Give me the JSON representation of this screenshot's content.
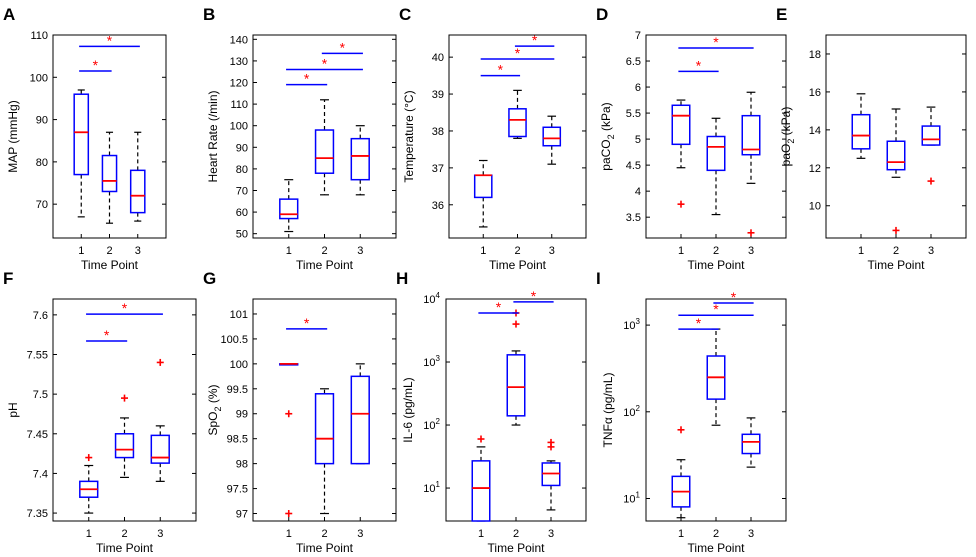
{
  "figure": {
    "colors": {
      "box": "#0000ff",
      "median": "#ff0000",
      "whisker": "#000000",
      "outlier": "#ff0000",
      "bracket": "#0000ff",
      "star": "#ff0000"
    },
    "sig_symbol": "*",
    "outlier_symbol": "+"
  },
  "chart_data": [
    {
      "panel": "A",
      "type": "box",
      "scale": "linear",
      "ylabel": "MAP (mmHg)",
      "xlabel": "Time Point",
      "categories": [
        "1",
        "2",
        "3"
      ],
      "ylim": [
        62,
        110
      ],
      "yticks": [
        70,
        80,
        90,
        100,
        110
      ],
      "ytick_labels": [
        "70",
        "80",
        "90",
        "100",
        "110"
      ],
      "boxes": [
        {
          "min": 67,
          "q1": 77,
          "median": 87,
          "q3": 96,
          "max": 97,
          "outliers": []
        },
        {
          "min": 65.5,
          "q1": 73,
          "median": 75.5,
          "q3": 81.5,
          "max": 87,
          "outliers": []
        },
        {
          "min": 66,
          "q1": 68,
          "median": 72,
          "q3": 78,
          "max": 87,
          "outliers": []
        }
      ],
      "sig_brackets": [
        {
          "from": 1,
          "to": 2,
          "y": 101.5
        },
        {
          "from": 1,
          "to": 3,
          "y": 107.3
        }
      ]
    },
    {
      "panel": "B",
      "type": "box",
      "scale": "linear",
      "ylabel": "Heart Rate (/min)",
      "xlabel": "Time Point",
      "categories": [
        "1",
        "2",
        "3"
      ],
      "ylim": [
        48,
        142
      ],
      "yticks": [
        50,
        60,
        70,
        80,
        90,
        100,
        110,
        120,
        130,
        140
      ],
      "ytick_labels": [
        "50",
        "60",
        "70",
        "80",
        "90",
        "100",
        "110",
        "120",
        "130",
        "140"
      ],
      "boxes": [
        {
          "min": 51,
          "q1": 57,
          "median": 59,
          "q3": 66,
          "max": 75,
          "outliers": []
        },
        {
          "min": 68,
          "q1": 78,
          "median": 85,
          "q3": 98,
          "max": 112,
          "outliers": []
        },
        {
          "min": 68,
          "q1": 75,
          "median": 86,
          "q3": 94,
          "max": 100,
          "outliers": []
        }
      ],
      "sig_brackets": [
        {
          "from": 1,
          "to": 2,
          "y": 119
        },
        {
          "from": 1,
          "to": 3,
          "y": 126
        },
        {
          "from": 2,
          "to": 3,
          "y": 133.5
        }
      ]
    },
    {
      "panel": "C",
      "type": "box",
      "scale": "linear",
      "ylabel": "Temperature (°C)",
      "xlabel": "Time Point",
      "categories": [
        "1",
        "2",
        "3"
      ],
      "ylim": [
        35.1,
        40.6
      ],
      "yticks": [
        36,
        37,
        38,
        39,
        40
      ],
      "ytick_labels": [
        "36",
        "37",
        "38",
        "39",
        "40"
      ],
      "boxes": [
        {
          "min": 35.4,
          "q1": 36.2,
          "median": 36.8,
          "q3": 36.8,
          "max": 37.2,
          "outliers": []
        },
        {
          "min": 37.8,
          "q1": 37.85,
          "median": 38.3,
          "q3": 38.6,
          "max": 39.1,
          "outliers": []
        },
        {
          "min": 37.1,
          "q1": 37.6,
          "median": 37.8,
          "q3": 38.1,
          "max": 38.4,
          "outliers": []
        }
      ],
      "sig_brackets": [
        {
          "from": 1,
          "to": 2,
          "y": 39.5
        },
        {
          "from": 1,
          "to": 3,
          "y": 39.95
        },
        {
          "from": 2,
          "to": 3,
          "y": 40.3
        }
      ]
    },
    {
      "panel": "D",
      "type": "box",
      "scale": "linear",
      "ylabel": "paCO2 (kPa)",
      "xlabel": "Time Point",
      "categories": [
        "1",
        "2",
        "3"
      ],
      "ylim": [
        3.1,
        7.0
      ],
      "yticks": [
        3.5,
        4,
        4.5,
        5,
        5.5,
        6,
        6.5,
        7
      ],
      "ytick_labels": [
        "3.5",
        "4",
        "4.5",
        "5",
        "5.5",
        "6",
        "6.5",
        "7"
      ],
      "boxes": [
        {
          "min": 4.45,
          "q1": 4.9,
          "median": 5.45,
          "q3": 5.65,
          "max": 5.75,
          "outliers": [
            3.75
          ]
        },
        {
          "min": 3.55,
          "q1": 4.4,
          "median": 4.85,
          "q3": 5.05,
          "max": 5.4,
          "outliers": []
        },
        {
          "min": 4.15,
          "q1": 4.7,
          "median": 4.8,
          "q3": 5.45,
          "max": 5.9,
          "outliers": [
            3.2
          ]
        }
      ],
      "sig_brackets": [
        {
          "from": 1,
          "to": 2,
          "y": 6.3
        },
        {
          "from": 1,
          "to": 3,
          "y": 6.75
        }
      ]
    },
    {
      "panel": "E",
      "type": "box",
      "scale": "linear",
      "ylabel": "paO2 (kPa)",
      "xlabel": "Time Point",
      "categories": [
        "1",
        "2",
        "3"
      ],
      "ylim": [
        8.3,
        19
      ],
      "yticks": [
        10,
        12,
        14,
        16,
        18
      ],
      "ytick_labels": [
        "10",
        "12",
        "14",
        "16",
        "18"
      ],
      "boxes": [
        {
          "min": 12.5,
          "q1": 13.0,
          "median": 13.7,
          "q3": 14.8,
          "max": 15.9,
          "outliers": []
        },
        {
          "min": 11.5,
          "q1": 11.9,
          "median": 12.3,
          "q3": 13.4,
          "max": 15.1,
          "outliers": [
            8.7
          ]
        },
        {
          "min": 13.2,
          "q1": 13.2,
          "median": 13.5,
          "q3": 14.2,
          "max": 15.2,
          "outliers": [
            11.3
          ]
        }
      ],
      "sig_brackets": []
    },
    {
      "panel": "F",
      "type": "box",
      "scale": "linear",
      "ylabel": "pH",
      "xlabel": "Time Point",
      "categories": [
        "1",
        "2",
        "3"
      ],
      "ylim": [
        7.34,
        7.62
      ],
      "yticks": [
        7.35,
        7.4,
        7.45,
        7.5,
        7.55,
        7.6
      ],
      "ytick_labels": [
        "7.35",
        "7.4",
        "7.45",
        "7.5",
        "7.55",
        "7.6"
      ],
      "boxes": [
        {
          "min": 7.35,
          "q1": 7.37,
          "median": 7.38,
          "q3": 7.39,
          "max": 7.41,
          "outliers": [
            7.42
          ]
        },
        {
          "min": 7.395,
          "q1": 7.42,
          "median": 7.43,
          "q3": 7.45,
          "max": 7.47,
          "outliers": [
            7.495
          ]
        },
        {
          "min": 7.39,
          "q1": 7.413,
          "median": 7.42,
          "q3": 7.448,
          "max": 7.46,
          "outliers": [
            7.54
          ]
        }
      ],
      "sig_brackets": [
        {
          "from": 1,
          "to": 2,
          "y": 7.567
        },
        {
          "from": 1,
          "to": 3,
          "y": 7.601
        }
      ]
    },
    {
      "panel": "G",
      "type": "box",
      "scale": "linear",
      "ylabel": "SpO2 (%)",
      "xlabel": "Time Point",
      "categories": [
        "1",
        "2",
        "3"
      ],
      "ylim": [
        96.85,
        101.3
      ],
      "yticks": [
        97,
        97.5,
        98,
        98.5,
        99,
        99.5,
        100,
        100.5,
        101
      ],
      "ytick_labels": [
        "97",
        "97.5",
        "98",
        "98.5",
        "99",
        "99.5",
        "100",
        "100.5",
        "101"
      ],
      "boxes": [
        {
          "min": 100,
          "q1": 100,
          "median": 100,
          "q3": 100,
          "max": 100,
          "outliers": [
            99,
            97
          ]
        },
        {
          "min": 97,
          "q1": 98,
          "median": 98.5,
          "q3": 99.4,
          "max": 99.5,
          "outliers": []
        },
        {
          "min": 98,
          "q1": 98,
          "median": 99,
          "q3": 99.75,
          "max": 100,
          "outliers": []
        }
      ],
      "sig_brackets": [
        {
          "from": 1,
          "to": 2,
          "y": 100.7
        }
      ]
    },
    {
      "panel": "H",
      "type": "box",
      "scale": "log",
      "ylabel": "IL-6 (pg/mL)",
      "xlabel": "Time Point",
      "categories": [
        "1",
        "2",
        "3"
      ],
      "ylim": [
        3.0,
        10000
      ],
      "yticks": [
        10,
        100,
        1000,
        10000
      ],
      "ytick_labels": [
        "10^1",
        "10^2",
        "10^3",
        "10^4"
      ],
      "boxes": [
        {
          "min": 3.0,
          "q1": 3.0,
          "median": 10,
          "q3": 27,
          "max": 45,
          "outliers": [
            60
          ]
        },
        {
          "min": 100,
          "q1": 140,
          "median": 400,
          "q3": 1300,
          "max": 1500,
          "outliers": [
            4000,
            6000
          ]
        },
        {
          "min": 4.5,
          "q1": 11,
          "median": 17,
          "q3": 25,
          "max": 27,
          "outliers": [
            45,
            53
          ]
        }
      ],
      "sig_brackets": [
        {
          "from": 1,
          "to": 2,
          "y": 6000
        },
        {
          "from": 2,
          "to": 3,
          "y": 9000
        }
      ]
    },
    {
      "panel": "I",
      "type": "box",
      "scale": "log",
      "ylabel": "TNFα (pg/mL)",
      "xlabel": "Time Point",
      "categories": [
        "1",
        "2",
        "3"
      ],
      "ylim": [
        5.5,
        2000
      ],
      "yticks": [
        10,
        100,
        1000
      ],
      "ytick_labels": [
        "10^1",
        "10^2",
        "10^3"
      ],
      "boxes": [
        {
          "min": 6,
          "q1": 8,
          "median": 12,
          "q3": 18,
          "max": 28,
          "outliers": [
            62
          ]
        },
        {
          "min": 70,
          "q1": 140,
          "median": 250,
          "q3": 440,
          "max": 900,
          "outliers": []
        },
        {
          "min": 23,
          "q1": 33,
          "median": 45,
          "q3": 55,
          "max": 85,
          "outliers": []
        }
      ],
      "sig_brackets": [
        {
          "from": 1,
          "to": 2,
          "y": 900
        },
        {
          "from": 1,
          "to": 3,
          "y": 1300
        },
        {
          "from": 2,
          "to": 3,
          "y": 1800
        }
      ]
    }
  ]
}
